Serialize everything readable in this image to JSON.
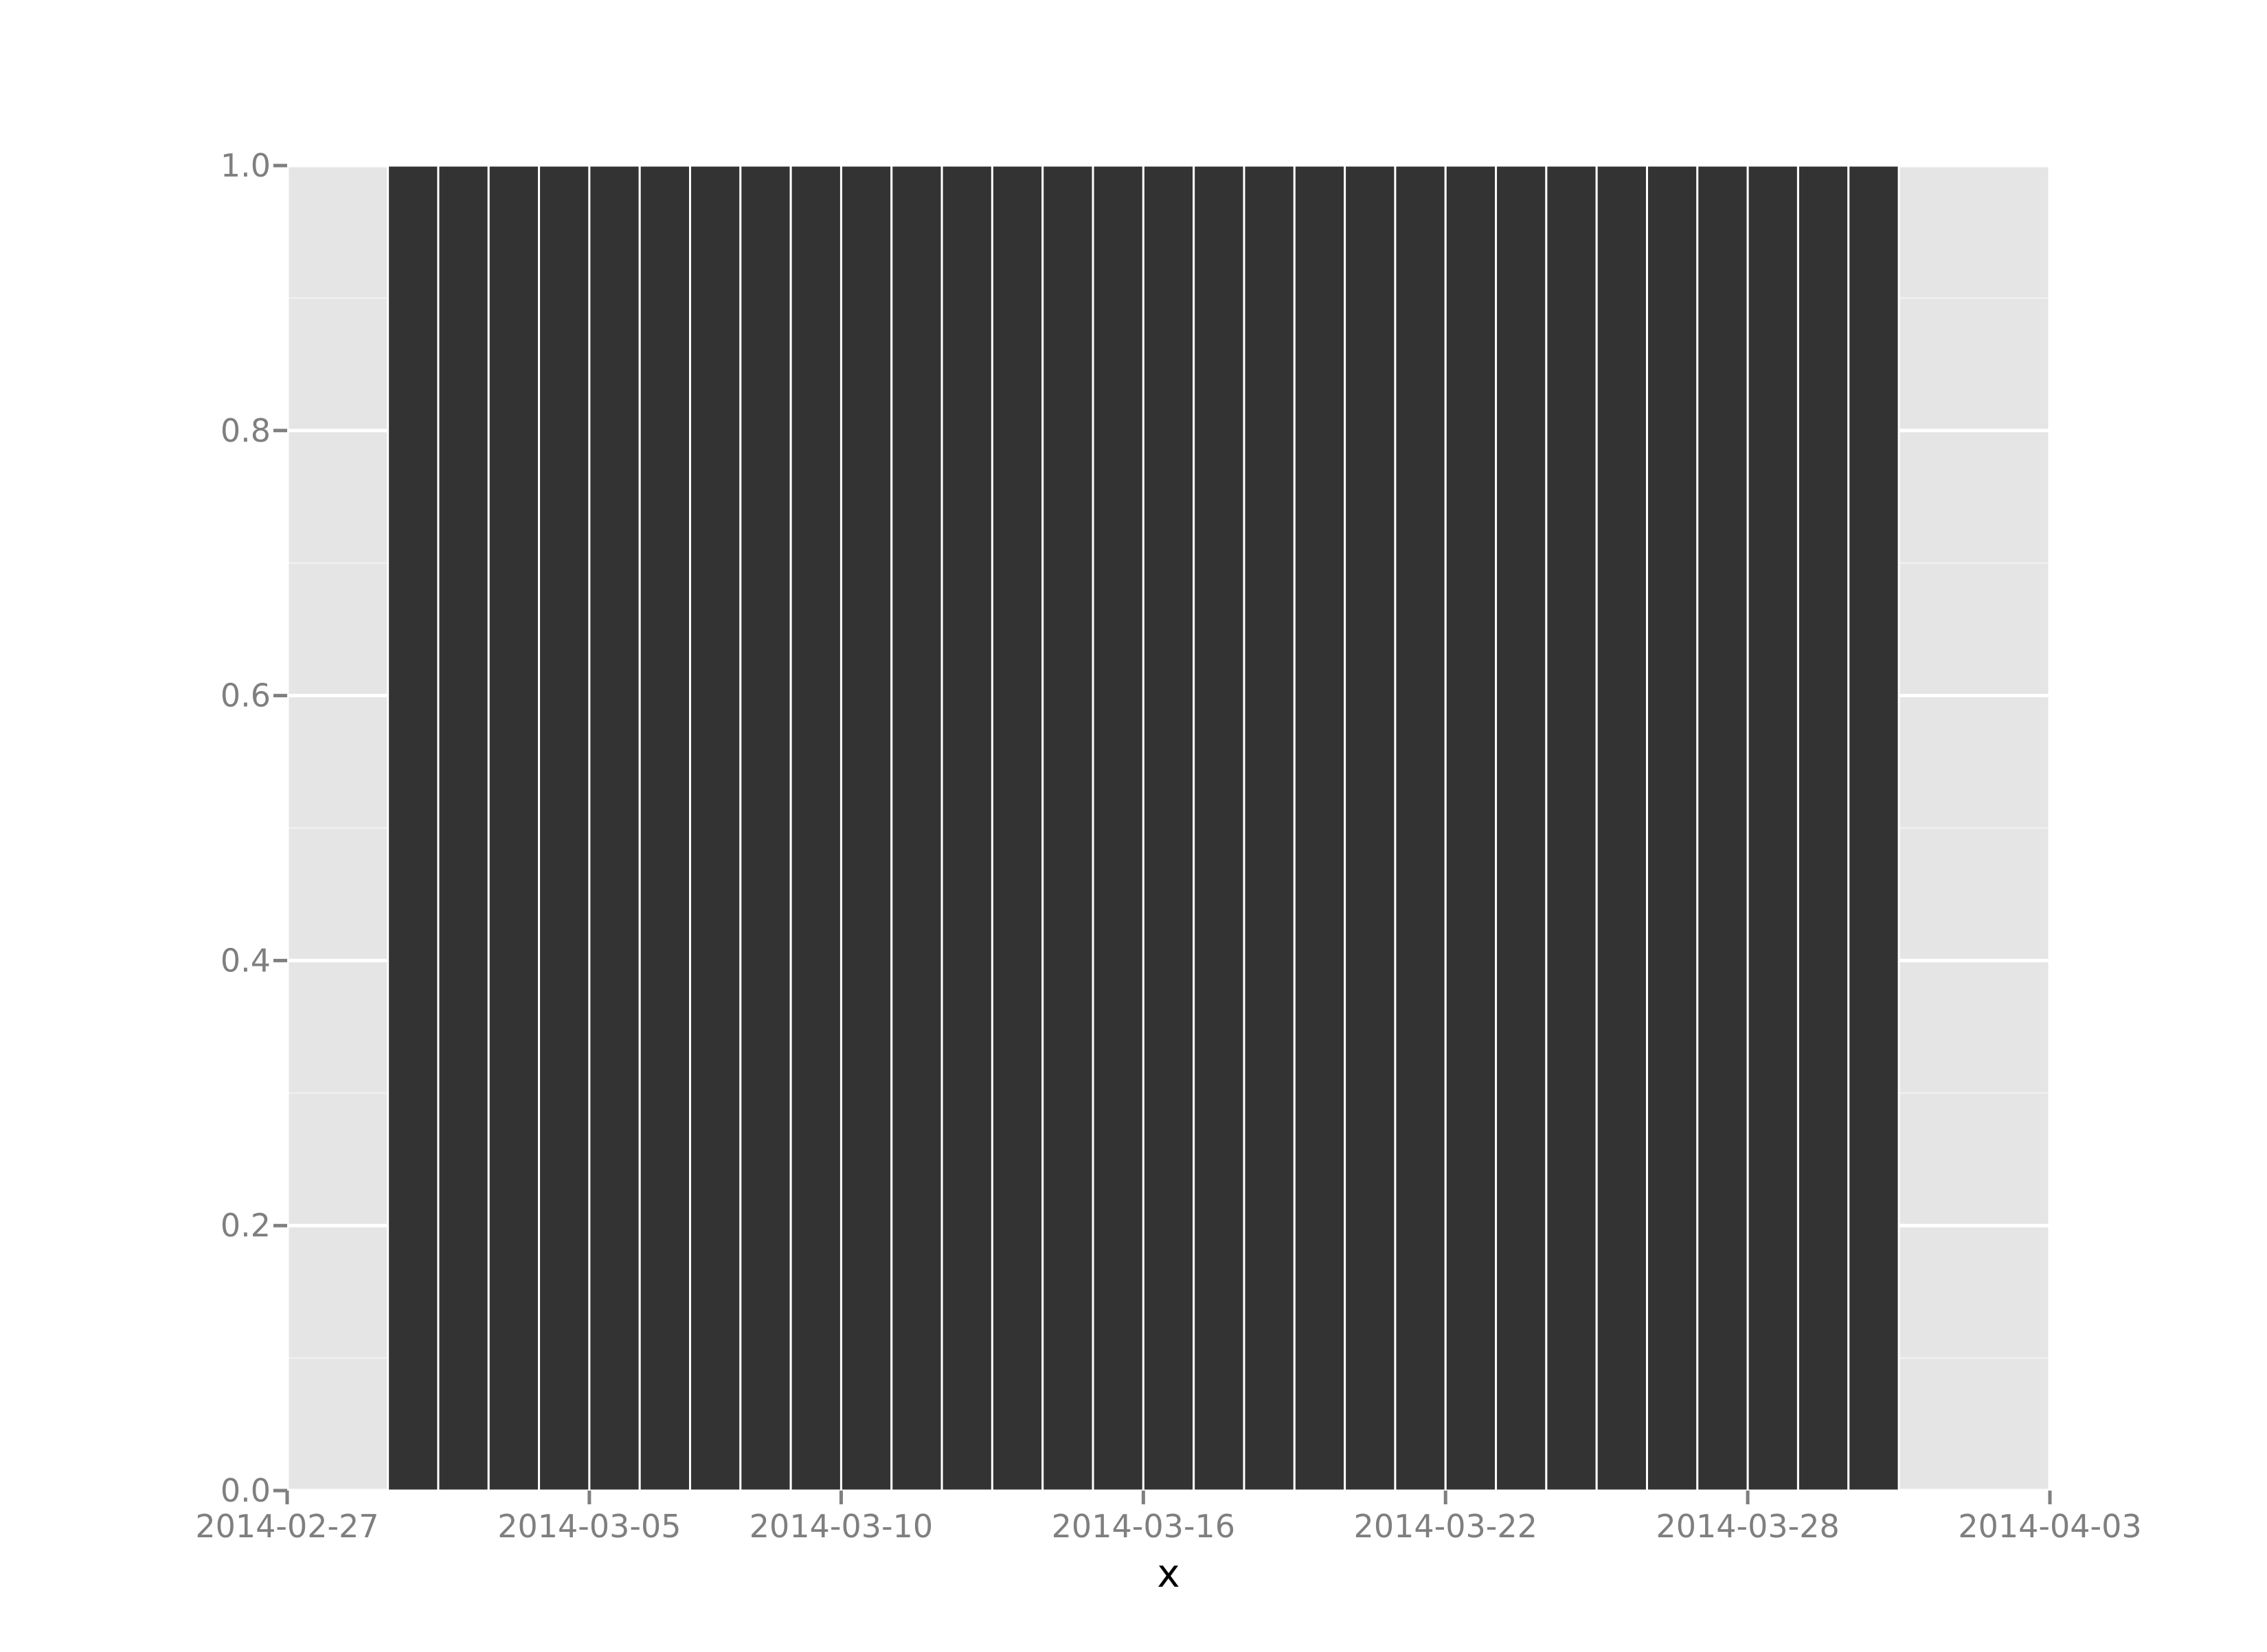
{
  "chart_data": {
    "type": "bar",
    "title": "",
    "xlabel": "x",
    "ylabel": "",
    "x_scale": "date",
    "xlim": [
      "2014-02-27",
      "2014-04-03"
    ],
    "ylim": [
      0,
      1
    ],
    "x_ticks": [
      "2014-02-27",
      "2014-03-05",
      "2014-03-10",
      "2014-03-16",
      "2014-03-22",
      "2014-03-28",
      "2014-04-03"
    ],
    "y_ticks": [
      "0.0",
      "0.2",
      "0.4",
      "0.6",
      "0.8",
      "1.0"
    ],
    "grid": true,
    "legend": "none",
    "bar_color": "#333333",
    "panel_color": "#e5e5e5",
    "categories": [
      "2014-03-01",
      "2014-03-02",
      "2014-03-03",
      "2014-03-04",
      "2014-03-05",
      "2014-03-06",
      "2014-03-07",
      "2014-03-08",
      "2014-03-09",
      "2014-03-10",
      "2014-03-11",
      "2014-03-12",
      "2014-03-13",
      "2014-03-14",
      "2014-03-15",
      "2014-03-16",
      "2014-03-17",
      "2014-03-18",
      "2014-03-19",
      "2014-03-20",
      "2014-03-21",
      "2014-03-22",
      "2014-03-23",
      "2014-03-24",
      "2014-03-25",
      "2014-03-26",
      "2014-03-27",
      "2014-03-28",
      "2014-03-29",
      "2014-03-30"
    ],
    "values": [
      1,
      1,
      1,
      1,
      1,
      1,
      1,
      1,
      1,
      1,
      1,
      1,
      1,
      1,
      1,
      1,
      1,
      1,
      1,
      1,
      1,
      1,
      1,
      1,
      1,
      1,
      1,
      1,
      1,
      1
    ]
  }
}
